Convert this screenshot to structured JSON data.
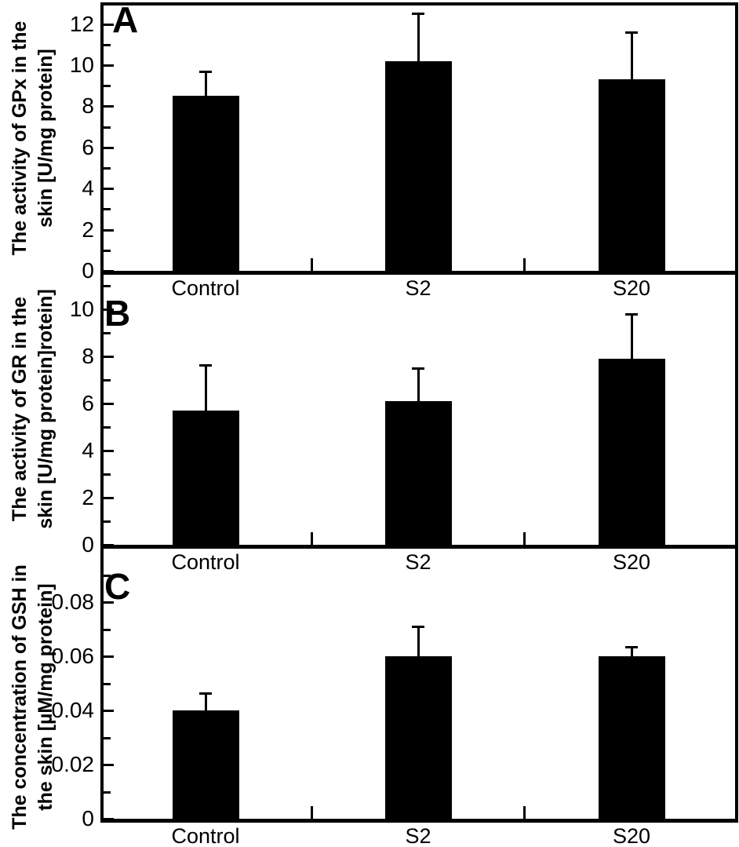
{
  "figure_type": "three-panel-bar-figure",
  "colors": {
    "ink": "#000000",
    "background": "#ffffff",
    "bar": "#000000"
  },
  "chart_data": [
    {
      "type": "bar",
      "panel_label": "A",
      "ylabel": "The activity of GPx in the skin [U/mg protein]",
      "ylabel_lines": [
        "The activity of GPx in the",
        "skin [U/mg protein]"
      ],
      "xlabel": "",
      "categories": [
        "Control",
        "S2",
        "S20"
      ],
      "values": [
        8.5,
        10.2,
        9.3
      ],
      "error_plus": [
        1.2,
        2.3,
        2.3
      ],
      "ylim": [
        0,
        12.9
      ],
      "ytick_values": [
        0,
        2,
        4,
        6,
        8,
        10,
        12
      ],
      "ytick_labels": [
        "0",
        "2",
        "4",
        "6",
        "8",
        "10",
        "12"
      ],
      "yminor_values": [
        1,
        3,
        5,
        7,
        9,
        11
      ],
      "grid": false,
      "legend": "none"
    },
    {
      "type": "bar",
      "panel_label": "B",
      "ylabel": "The activity of GR in the skin [U/mg protein]rotein]",
      "ylabel_lines": [
        "The activity of GR in the",
        "skin [U/mg protein]rotein]"
      ],
      "xlabel": "",
      "categories": [
        "Control",
        "S2",
        "S20"
      ],
      "values": [
        5.7,
        6.1,
        7.9
      ],
      "error_plus": [
        1.95,
        1.4,
        1.9
      ],
      "ylim": [
        0,
        11.5
      ],
      "ytick_values": [
        0,
        2,
        4,
        6,
        8,
        10
      ],
      "ytick_labels": [
        "0",
        "2",
        "4",
        "6",
        "8",
        "10"
      ],
      "yminor_values": [
        1,
        3,
        5,
        7,
        9,
        11
      ],
      "grid": false,
      "legend": "none"
    },
    {
      "type": "bar",
      "panel_label": "C",
      "ylabel": "The concentration of GSH in the skin [µM/mg protein]",
      "ylabel_lines": [
        "The concentration of GSH in",
        "the skin [µM/mg protein]"
      ],
      "xlabel": "",
      "categories": [
        "Control",
        "S2",
        "S20"
      ],
      "values": [
        0.04,
        0.06,
        0.06
      ],
      "error_plus": [
        0.0065,
        0.011,
        0.0035
      ],
      "ylim": [
        0,
        0.1
      ],
      "ytick_values": [
        0,
        0.02,
        0.04,
        0.06,
        0.08
      ],
      "ytick_labels": [
        "0",
        "0.02",
        "0.04",
        "0.06",
        "0.08"
      ],
      "yminor_values": [
        0.01,
        0.03,
        0.05,
        0.07,
        0.09
      ],
      "grid": false,
      "legend": "none"
    }
  ]
}
